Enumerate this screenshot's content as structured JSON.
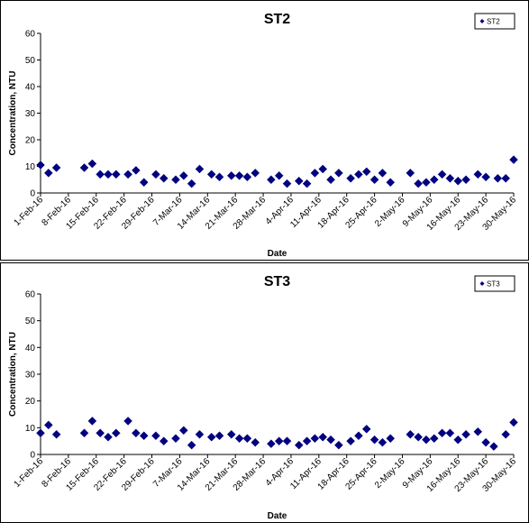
{
  "chart_data": [
    {
      "type": "scatter",
      "title": "ST2",
      "xlabel": "Date",
      "ylabel": "Concentration, NTU",
      "ylim": [
        0,
        60
      ],
      "yticks": [
        0,
        10,
        20,
        30,
        40,
        50,
        60
      ],
      "xlim": [
        "2016-02-01",
        "2016-05-30"
      ],
      "xticks": [
        {
          "date": "2016-02-01",
          "label": "1-Feb-16"
        },
        {
          "date": "2016-02-08",
          "label": "8-Feb-16"
        },
        {
          "date": "2016-02-15",
          "label": "15-Feb-16"
        },
        {
          "date": "2016-02-22",
          "label": "22-Feb-16"
        },
        {
          "date": "2016-02-29",
          "label": "29-Feb-16"
        },
        {
          "date": "2016-03-07",
          "label": "7-Mar-16"
        },
        {
          "date": "2016-03-14",
          "label": "14-Mar-16"
        },
        {
          "date": "2016-03-21",
          "label": "21-Mar-16"
        },
        {
          "date": "2016-03-28",
          "label": "28-Mar-16"
        },
        {
          "date": "2016-04-04",
          "label": "4-Apr-16"
        },
        {
          "date": "2016-04-11",
          "label": "11-Apr-16"
        },
        {
          "date": "2016-04-18",
          "label": "18-Apr-16"
        },
        {
          "date": "2016-04-25",
          "label": "25-Apr-16"
        },
        {
          "date": "2016-05-02",
          "label": "2-May-16"
        },
        {
          "date": "2016-05-09",
          "label": "9-May-16"
        },
        {
          "date": "2016-05-16",
          "label": "16-May-16"
        },
        {
          "date": "2016-05-23",
          "label": "23-May-16"
        },
        {
          "date": "2016-05-30",
          "label": "30-May-16"
        }
      ],
      "grid": false,
      "legend_position": "top-right",
      "series": [
        {
          "name": "ST2",
          "color": "#000080",
          "marker": "diamond",
          "points": [
            {
              "x": "2016-02-01",
              "y": 10.5
            },
            {
              "x": "2016-02-03",
              "y": 7.5
            },
            {
              "x": "2016-02-05",
              "y": 9.5
            },
            {
              "x": "2016-02-12",
              "y": 9.5
            },
            {
              "x": "2016-02-14",
              "y": 11.0
            },
            {
              "x": "2016-02-16",
              "y": 7.0
            },
            {
              "x": "2016-02-18",
              "y": 7.0
            },
            {
              "x": "2016-02-20",
              "y": 7.0
            },
            {
              "x": "2016-02-23",
              "y": 7.0
            },
            {
              "x": "2016-02-25",
              "y": 8.5
            },
            {
              "x": "2016-02-27",
              "y": 4.0
            },
            {
              "x": "2016-03-01",
              "y": 7.0
            },
            {
              "x": "2016-03-03",
              "y": 5.5
            },
            {
              "x": "2016-03-06",
              "y": 5.0
            },
            {
              "x": "2016-03-08",
              "y": 6.5
            },
            {
              "x": "2016-03-10",
              "y": 3.5
            },
            {
              "x": "2016-03-12",
              "y": 9.0
            },
            {
              "x": "2016-03-15",
              "y": 7.0
            },
            {
              "x": "2016-03-17",
              "y": 6.0
            },
            {
              "x": "2016-03-20",
              "y": 6.5
            },
            {
              "x": "2016-03-22",
              "y": 6.5
            },
            {
              "x": "2016-03-24",
              "y": 6.0
            },
            {
              "x": "2016-03-26",
              "y": 7.5
            },
            {
              "x": "2016-03-30",
              "y": 5.0
            },
            {
              "x": "2016-04-01",
              "y": 6.5
            },
            {
              "x": "2016-04-03",
              "y": 3.5
            },
            {
              "x": "2016-04-06",
              "y": 4.5
            },
            {
              "x": "2016-04-08",
              "y": 3.5
            },
            {
              "x": "2016-04-10",
              "y": 7.5
            },
            {
              "x": "2016-04-12",
              "y": 9.0
            },
            {
              "x": "2016-04-14",
              "y": 5.0
            },
            {
              "x": "2016-04-16",
              "y": 7.5
            },
            {
              "x": "2016-04-19",
              "y": 5.5
            },
            {
              "x": "2016-04-21",
              "y": 7.0
            },
            {
              "x": "2016-04-23",
              "y": 8.0
            },
            {
              "x": "2016-04-25",
              "y": 5.0
            },
            {
              "x": "2016-04-27",
              "y": 7.5
            },
            {
              "x": "2016-04-29",
              "y": 4.0
            },
            {
              "x": "2016-05-04",
              "y": 7.5
            },
            {
              "x": "2016-05-06",
              "y": 3.5
            },
            {
              "x": "2016-05-08",
              "y": 4.0
            },
            {
              "x": "2016-05-10",
              "y": 5.0
            },
            {
              "x": "2016-05-12",
              "y": 7.0
            },
            {
              "x": "2016-05-14",
              "y": 5.5
            },
            {
              "x": "2016-05-16",
              "y": 4.5
            },
            {
              "x": "2016-05-18",
              "y": 5.0
            },
            {
              "x": "2016-05-21",
              "y": 7.0
            },
            {
              "x": "2016-05-23",
              "y": 6.0
            },
            {
              "x": "2016-05-26",
              "y": 5.5
            },
            {
              "x": "2016-05-28",
              "y": 5.5
            },
            {
              "x": "2016-05-30",
              "y": 12.5
            }
          ]
        }
      ]
    },
    {
      "type": "scatter",
      "title": "ST3",
      "xlabel": "Date",
      "ylabel": "Concentration, NTU",
      "ylim": [
        0,
        60
      ],
      "yticks": [
        0,
        10,
        20,
        30,
        40,
        50,
        60
      ],
      "xlim": [
        "2016-02-01",
        "2016-05-30"
      ],
      "xticks": [
        {
          "date": "2016-02-01",
          "label": "1-Feb-16"
        },
        {
          "date": "2016-02-08",
          "label": "8-Feb-16"
        },
        {
          "date": "2016-02-15",
          "label": "15-Feb-16"
        },
        {
          "date": "2016-02-22",
          "label": "22-Feb-16"
        },
        {
          "date": "2016-02-29",
          "label": "29-Feb-16"
        },
        {
          "date": "2016-03-07",
          "label": "7-Mar-16"
        },
        {
          "date": "2016-03-14",
          "label": "14-Mar-16"
        },
        {
          "date": "2016-03-21",
          "label": "21-Mar-16"
        },
        {
          "date": "2016-03-28",
          "label": "28-Mar-16"
        },
        {
          "date": "2016-04-04",
          "label": "4-Apr-16"
        },
        {
          "date": "2016-04-11",
          "label": "11-Apr-16"
        },
        {
          "date": "2016-04-18",
          "label": "18-Apr-16"
        },
        {
          "date": "2016-04-25",
          "label": "25-Apr-16"
        },
        {
          "date": "2016-05-02",
          "label": "2-May-16"
        },
        {
          "date": "2016-05-09",
          "label": "9-May-16"
        },
        {
          "date": "2016-05-16",
          "label": "16-May-16"
        },
        {
          "date": "2016-05-23",
          "label": "23-May-16"
        },
        {
          "date": "2016-05-30",
          "label": "30-May-16"
        }
      ],
      "grid": false,
      "legend_position": "top-right",
      "series": [
        {
          "name": "ST3",
          "color": "#000080",
          "marker": "diamond",
          "points": [
            {
              "x": "2016-02-01",
              "y": 8.0
            },
            {
              "x": "2016-02-03",
              "y": 11.0
            },
            {
              "x": "2016-02-05",
              "y": 7.5
            },
            {
              "x": "2016-02-12",
              "y": 8.0
            },
            {
              "x": "2016-02-14",
              "y": 12.5
            },
            {
              "x": "2016-02-16",
              "y": 8.0
            },
            {
              "x": "2016-02-18",
              "y": 6.5
            },
            {
              "x": "2016-02-20",
              "y": 8.0
            },
            {
              "x": "2016-02-23",
              "y": 12.5
            },
            {
              "x": "2016-02-25",
              "y": 8.0
            },
            {
              "x": "2016-02-27",
              "y": 7.0
            },
            {
              "x": "2016-03-01",
              "y": 7.0
            },
            {
              "x": "2016-03-03",
              "y": 5.0
            },
            {
              "x": "2016-03-06",
              "y": 6.0
            },
            {
              "x": "2016-03-08",
              "y": 9.0
            },
            {
              "x": "2016-03-10",
              "y": 3.5
            },
            {
              "x": "2016-03-12",
              "y": 7.5
            },
            {
              "x": "2016-03-15",
              "y": 6.5
            },
            {
              "x": "2016-03-17",
              "y": 7.0
            },
            {
              "x": "2016-03-20",
              "y": 7.5
            },
            {
              "x": "2016-03-22",
              "y": 6.0
            },
            {
              "x": "2016-03-24",
              "y": 6.0
            },
            {
              "x": "2016-03-26",
              "y": 4.5
            },
            {
              "x": "2016-03-30",
              "y": 4.0
            },
            {
              "x": "2016-04-01",
              "y": 5.0
            },
            {
              "x": "2016-04-03",
              "y": 5.0
            },
            {
              "x": "2016-04-06",
              "y": 3.5
            },
            {
              "x": "2016-04-08",
              "y": 5.0
            },
            {
              "x": "2016-04-10",
              "y": 6.0
            },
            {
              "x": "2016-04-12",
              "y": 6.5
            },
            {
              "x": "2016-04-14",
              "y": 5.5
            },
            {
              "x": "2016-04-16",
              "y": 3.5
            },
            {
              "x": "2016-04-19",
              "y": 5.0
            },
            {
              "x": "2016-04-21",
              "y": 7.0
            },
            {
              "x": "2016-04-23",
              "y": 9.5
            },
            {
              "x": "2016-04-25",
              "y": 5.5
            },
            {
              "x": "2016-04-27",
              "y": 4.5
            },
            {
              "x": "2016-04-29",
              "y": 6.0
            },
            {
              "x": "2016-05-04",
              "y": 7.5
            },
            {
              "x": "2016-05-06",
              "y": 6.5
            },
            {
              "x": "2016-05-08",
              "y": 5.5
            },
            {
              "x": "2016-05-10",
              "y": 6.0
            },
            {
              "x": "2016-05-12",
              "y": 8.0
            },
            {
              "x": "2016-05-14",
              "y": 8.0
            },
            {
              "x": "2016-05-16",
              "y": 5.5
            },
            {
              "x": "2016-05-18",
              "y": 7.5
            },
            {
              "x": "2016-05-21",
              "y": 8.5
            },
            {
              "x": "2016-05-23",
              "y": 4.5
            },
            {
              "x": "2016-05-25",
              "y": 3.0
            },
            {
              "x": "2016-05-28",
              "y": 7.5
            },
            {
              "x": "2016-05-30",
              "y": 12.0
            }
          ]
        }
      ]
    }
  ]
}
